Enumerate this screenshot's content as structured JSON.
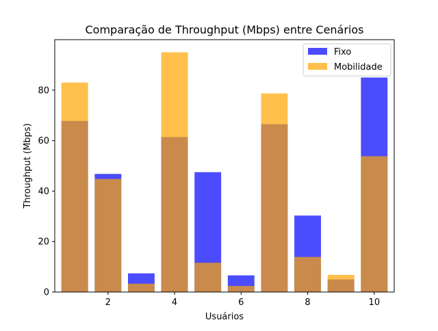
{
  "chart_data": {
    "type": "bar",
    "title": "Comparação de Throughput (Mbps) entre Cenários",
    "xlabel": "Usuários",
    "ylabel": "Throughput (Mbps)",
    "x": [
      1,
      2,
      3,
      4,
      5,
      6,
      7,
      8,
      9,
      10
    ],
    "xlim": [
      0.4,
      10.6
    ],
    "ylim": [
      0,
      100
    ],
    "xticks": [
      2,
      4,
      6,
      8,
      10
    ],
    "yticks": [
      0,
      20,
      40,
      60,
      80
    ],
    "grid": false,
    "legend_position": "top-right",
    "series": [
      {
        "name": "Fixo",
        "color": "#0000ff",
        "opacity": 0.7,
        "values": [
          67.8,
          46.8,
          7.4,
          61.4,
          47.5,
          6.6,
          66.5,
          30.3,
          5.0,
          85.0
        ]
      },
      {
        "name": "Mobilidade",
        "color": "#ffa500",
        "opacity": 0.7,
        "values": [
          83.0,
          44.8,
          3.3,
          95.0,
          11.6,
          2.4,
          78.7,
          13.9,
          6.8,
          53.8
        ]
      }
    ]
  }
}
